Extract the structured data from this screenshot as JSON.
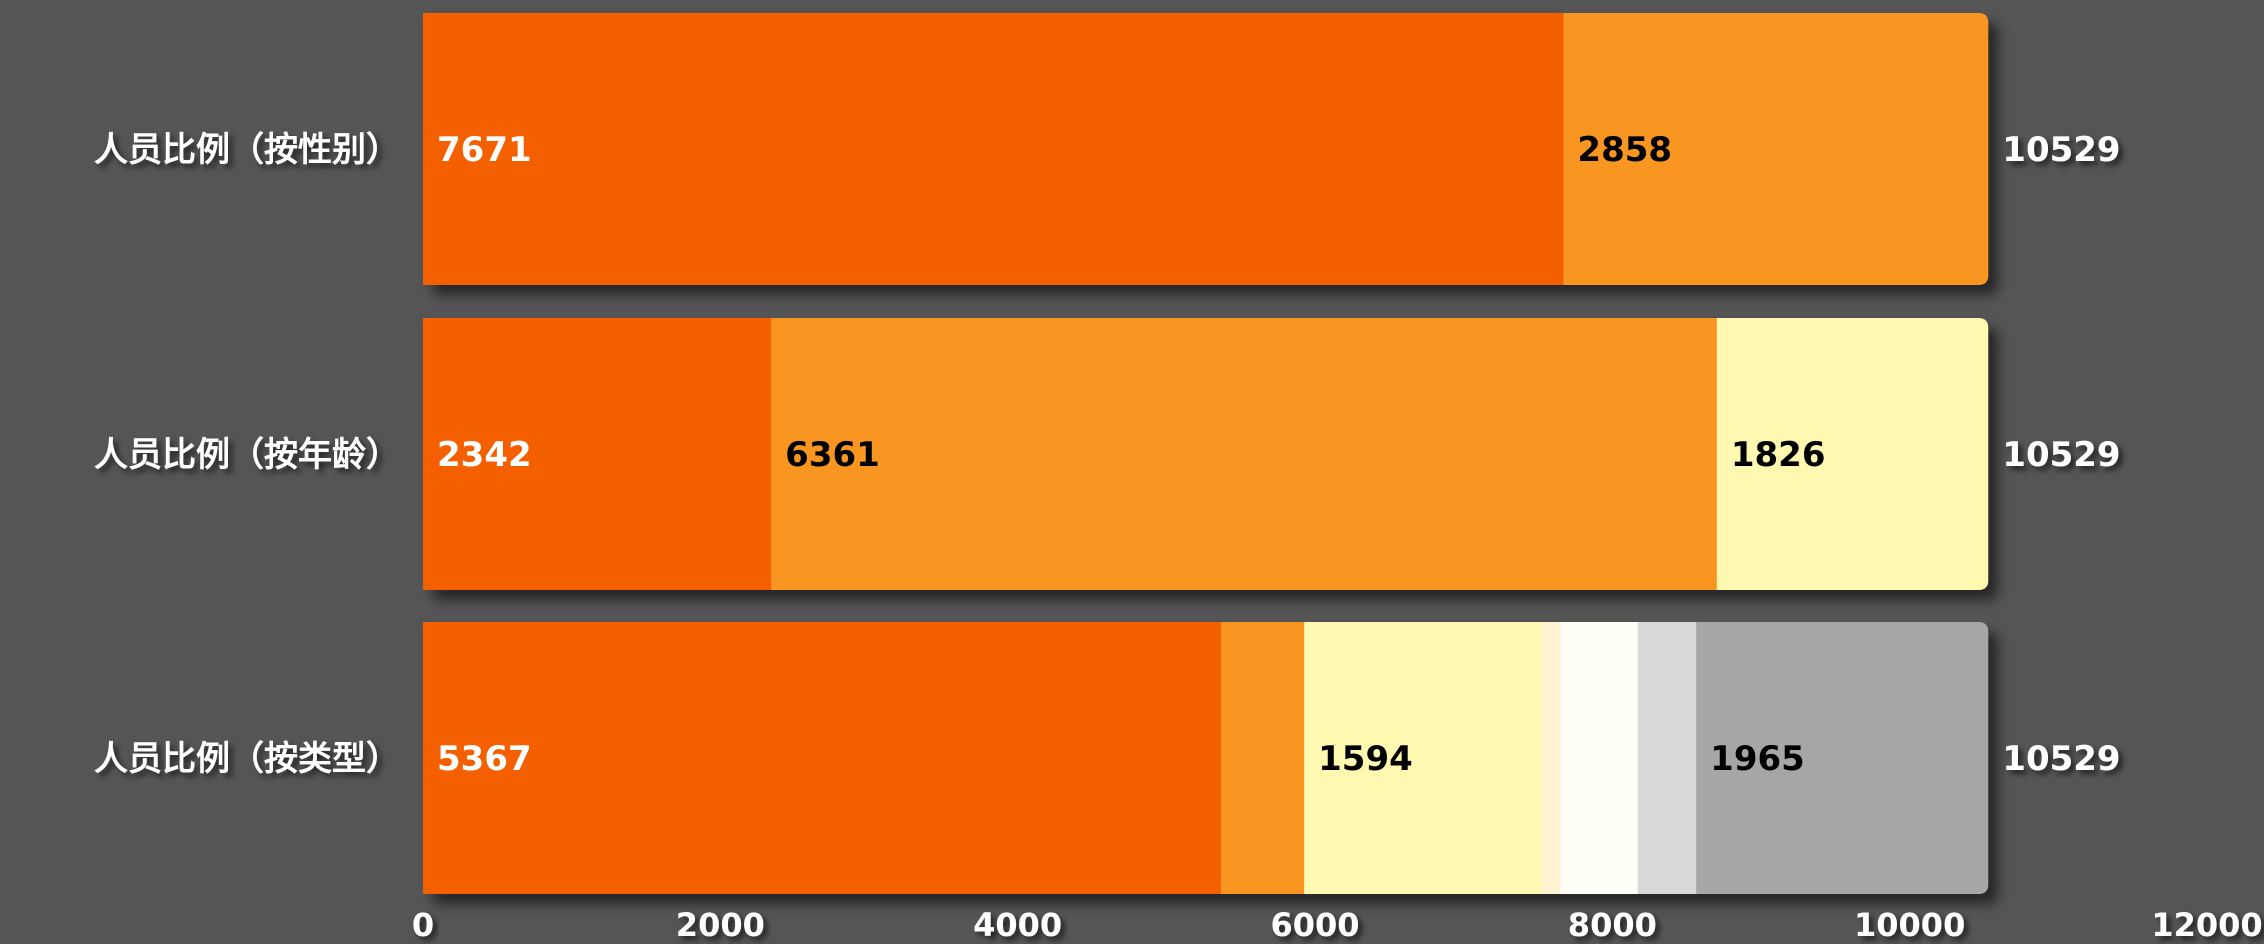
{
  "chart_data": {
    "type": "bar",
    "orientation": "horizontal",
    "stacked": true,
    "categories": [
      "人员比例（按性别）",
      "人员比例（按年龄）",
      "人员比例（按类型）"
    ],
    "segments": [
      {
        "values": [
          7671,
          2858
        ],
        "colors": [
          "#F45F00",
          "#F99621"
        ],
        "labels": [
          "7671",
          "2858"
        ]
      },
      {
        "values": [
          2342,
          6361,
          1826
        ],
        "colors": [
          "#F45F00",
          "#F99621",
          "#FFF8B0"
        ],
        "labels": [
          "2342",
          "6361",
          "1826"
        ]
      },
      {
        "values": [
          5367,
          560,
          1594,
          130,
          520,
          393,
          1965
        ],
        "colors": [
          "#F45F00",
          "#F99621",
          "#FFF8B0",
          "#FFF2D0",
          "#FFFEF6",
          "#D9D9D9",
          "#A6A6A6"
        ],
        "labels": [
          "5367",
          "",
          "1594",
          "",
          "",
          "",
          "1965"
        ]
      }
    ],
    "totals": [
      "10529",
      "10529",
      "10529"
    ],
    "xlim": [
      0,
      12000
    ],
    "xticks": [
      "0",
      "2000",
      "4000",
      "6000",
      "8000",
      "10000",
      "12000"
    ],
    "grid": false,
    "legend": "none"
  }
}
